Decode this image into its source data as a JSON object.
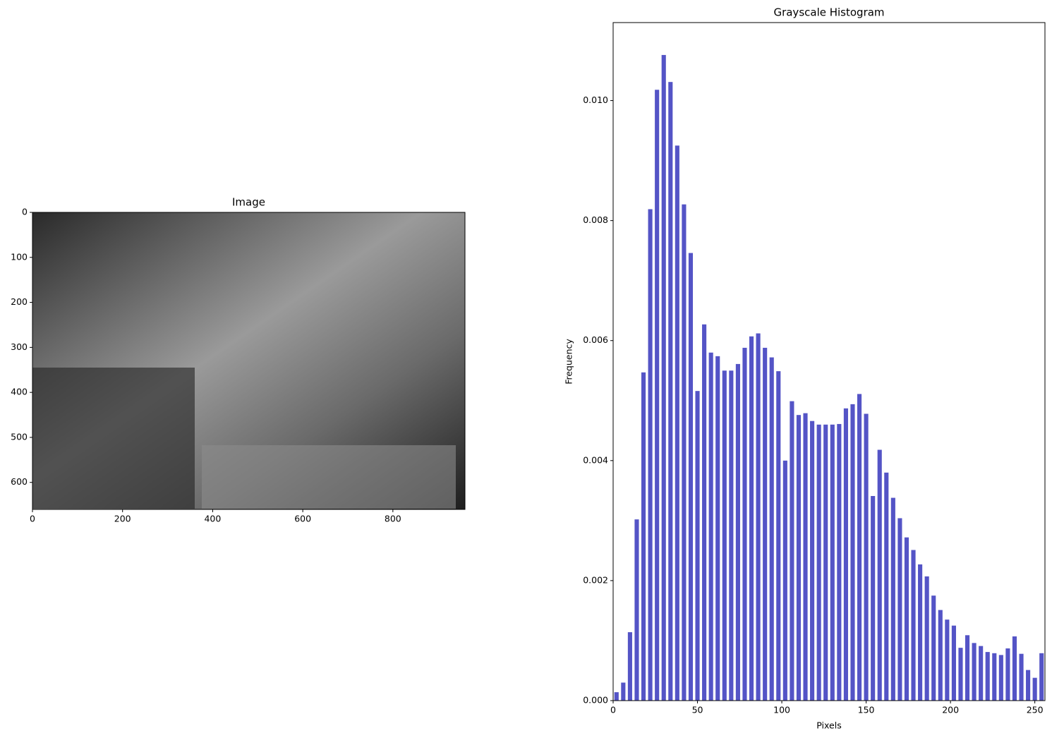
{
  "chart_data": [
    {
      "type": "image",
      "title": "Image",
      "xlim": [
        0,
        960
      ],
      "ylim": [
        660,
        0
      ],
      "xticks": [
        0,
        200,
        400,
        600,
        800
      ],
      "yticks": [
        0,
        100,
        200,
        300,
        400,
        500,
        600
      ]
    },
    {
      "type": "histogram",
      "title": "Grayscale Histogram",
      "xlabel": "Pixels",
      "ylabel": "Frequency",
      "color": "#5454c6",
      "bins": [
        0,
        4,
        8,
        12,
        16,
        20,
        24,
        28,
        32,
        36,
        40,
        44,
        48,
        52,
        56,
        60,
        64,
        68,
        72,
        76,
        80,
        84,
        88,
        92,
        96,
        100,
        104,
        108,
        112,
        116,
        120,
        124,
        128,
        132,
        136,
        140,
        144,
        148,
        152,
        156,
        160,
        164,
        168,
        172,
        176,
        180,
        184,
        188,
        192,
        196,
        200,
        204,
        208,
        212,
        216,
        220,
        224,
        228,
        232,
        236,
        240,
        244,
        248,
        252,
        256
      ],
      "values": [
        0.00014,
        0.0003,
        0.00114,
        0.00302,
        0.00547,
        0.00819,
        0.01018,
        0.01076,
        0.01031,
        0.00925,
        0.00827,
        0.00746,
        0.00516,
        0.00627,
        0.0058,
        0.00574,
        0.0055,
        0.0055,
        0.00561,
        0.00588,
        0.00607,
        0.00612,
        0.00588,
        0.00572,
        0.00549,
        0.004,
        0.00499,
        0.00476,
        0.00479,
        0.00466,
        0.0046,
        0.0046,
        0.0046,
        0.00461,
        0.00487,
        0.00494,
        0.00511,
        0.00478,
        0.00341,
        0.00418,
        0.0038,
        0.00338,
        0.00304,
        0.00272,
        0.00251,
        0.00227,
        0.00207,
        0.00175,
        0.00151,
        0.00135,
        0.00125,
        0.00088,
        0.00109,
        0.00096,
        0.00091,
        0.00081,
        0.00079,
        0.00076,
        0.00087,
        0.00107,
        0.00078,
        0.00051,
        0.00038,
        0.00079
      ],
      "xlim": [
        0,
        256
      ],
      "ylim": [
        0,
        0.0113
      ],
      "xticks": [
        0,
        50,
        100,
        150,
        200,
        250
      ],
      "yticks": [
        {
          "value": 0,
          "label": "0.000"
        },
        {
          "value": 0.002,
          "label": "0.002"
        },
        {
          "value": 0.004,
          "label": "0.004"
        },
        {
          "value": 0.006,
          "label": "0.006"
        },
        {
          "value": 0.008,
          "label": "0.008"
        },
        {
          "value": 0.01,
          "label": "0.010"
        }
      ]
    }
  ]
}
